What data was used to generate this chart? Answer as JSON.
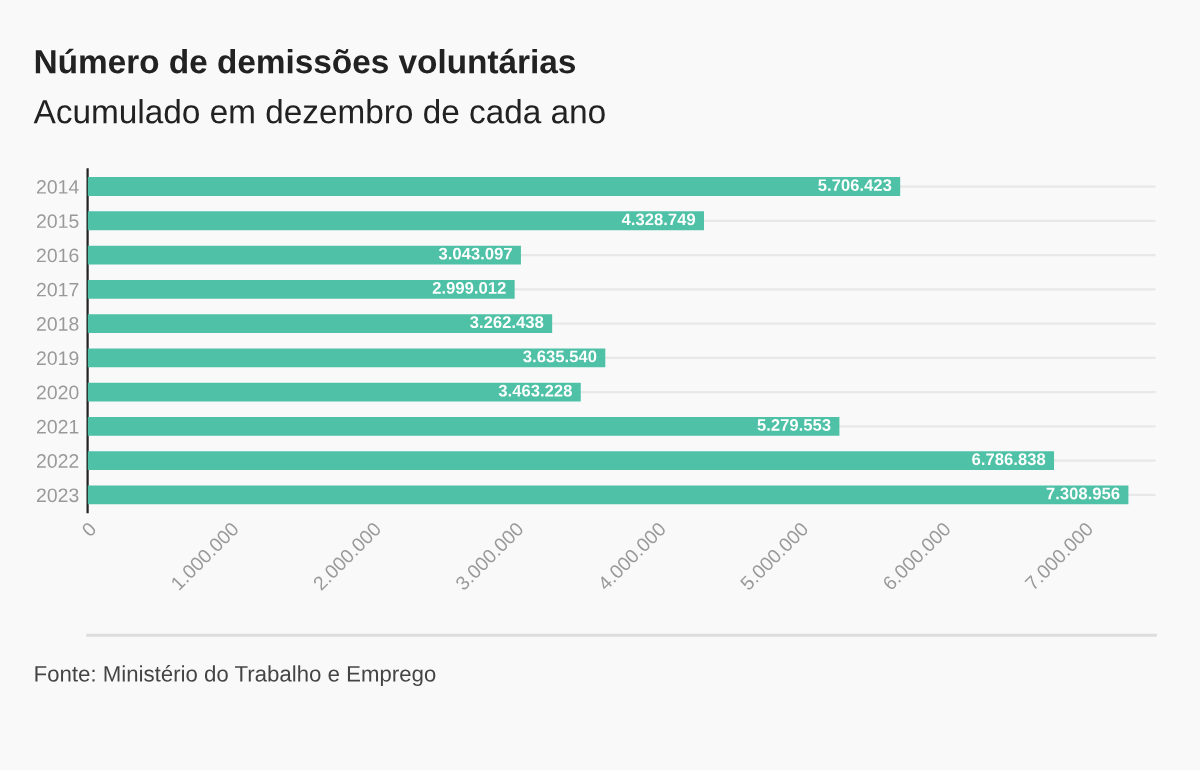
{
  "chart_data": {
    "type": "bar",
    "orientation": "horizontal",
    "title": "Número de demissões voluntárias",
    "subtitle": "Acumulado em dezembro de cada ano",
    "categories": [
      "2014",
      "2015",
      "2016",
      "2017",
      "2018",
      "2019",
      "2020",
      "2021",
      "2022",
      "2023"
    ],
    "values": [
      5706423,
      4328749,
      3043097,
      2999012,
      3262438,
      3635540,
      3463228,
      5279553,
      6786838,
      7308956
    ],
    "value_labels": [
      "5.706.423",
      "4.328.749",
      "3.043.097",
      "2.999.012",
      "3.262.438",
      "3.635.540",
      "3.463.228",
      "5.279.553",
      "6.786.838",
      "7.308.956"
    ],
    "color": "#4fc1a6",
    "xlim": [
      0,
      7500000
    ],
    "xticks": [
      0,
      {
        "value": 1000000,
        "label": "1.000.000"
      },
      {
        "value": 2000000,
        "label": "2.000.000"
      },
      {
        "value": 3000000,
        "label": "3.000.000"
      },
      {
        "value": 4000000,
        "label": "4.000.000"
      },
      {
        "value": 5000000,
        "label": "5.000.000"
      },
      {
        "value": 6000000,
        "label": "6.000.000"
      },
      {
        "value": 7000000,
        "label": "7.000.000"
      }
    ],
    "grid": "y",
    "legend": false,
    "annotations": [
      "Fonte: Ministério do Trabalho e Emprego"
    ]
  }
}
